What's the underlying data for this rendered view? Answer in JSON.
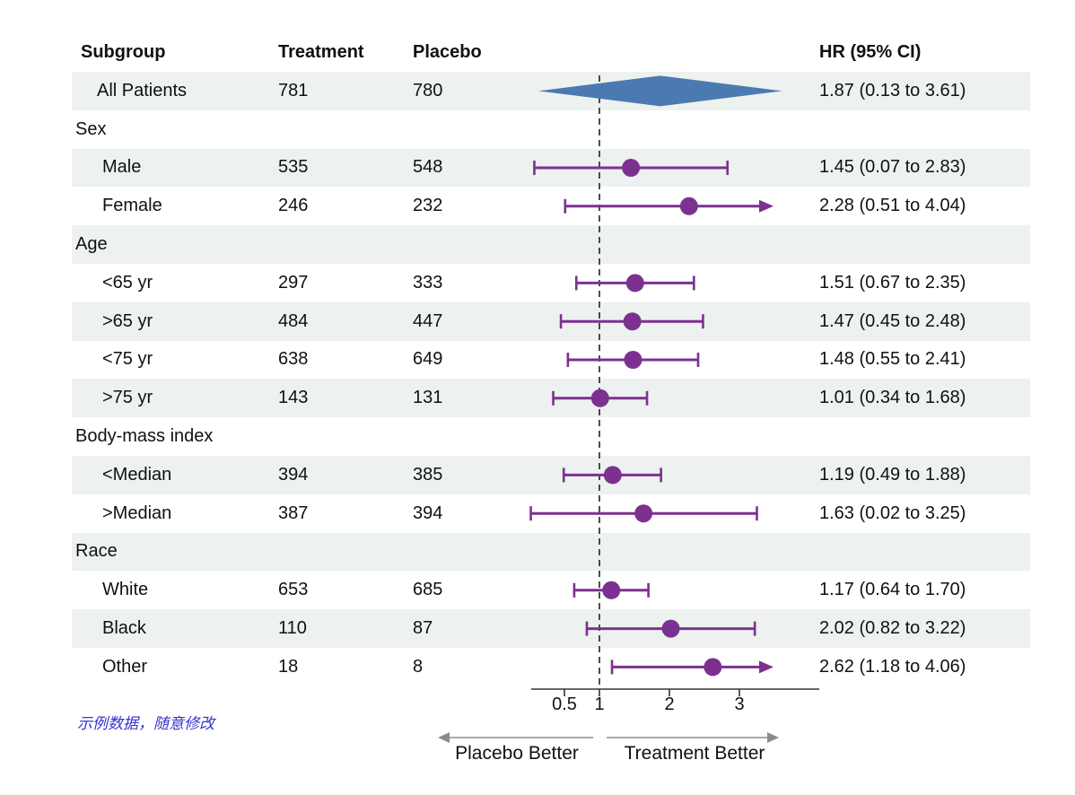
{
  "header": {
    "subgroup": "Subgroup",
    "treatment": "Treatment",
    "placebo": "Placebo",
    "hr": "HR (95% CI)"
  },
  "footnote": "示例数据，随意修改",
  "colors": {
    "stripe": "#edf1f0",
    "marker_purple": "#7c3190",
    "diamond_blue": "#4b79b2",
    "axis": "#333333",
    "direction_arrow": "#8c8c8c",
    "footnote_blue": "#3533cb",
    "text": "#111111",
    "ref_line": "#222222"
  },
  "chart_data": {
    "type": "forest",
    "title": "",
    "x_axis": {
      "scale": "linear",
      "ticks": [
        0.5,
        1,
        2,
        3
      ],
      "tick_labels": [
        "0.5",
        "1",
        "2",
        "3"
      ],
      "range": [
        0.03,
        4.14
      ],
      "ref_line": 1,
      "left_label": "Placebo Better",
      "right_label": "Treatment Better"
    },
    "columns": [
      "Subgroup",
      "Treatment",
      "Placebo",
      "HR (95% CI)"
    ],
    "rows": [
      {
        "kind": "summary",
        "label": "All Patients",
        "treatment": "781",
        "placebo": "780",
        "hr_text": "1.87 (0.13 to 3.61)",
        "est": 1.87,
        "lo": 0.13,
        "hi": 3.61,
        "shape": "diamond"
      },
      {
        "kind": "section",
        "label": "Sex"
      },
      {
        "kind": "item",
        "label": "Male",
        "treatment": "535",
        "placebo": "548",
        "hr_text": "1.45 (0.07 to 2.83)",
        "est": 1.45,
        "lo": 0.07,
        "hi": 2.83
      },
      {
        "kind": "item",
        "label": "Female",
        "treatment": "246",
        "placebo": "232",
        "hr_text": "2.28 (0.51 to 4.04)",
        "est": 2.28,
        "lo": 0.51,
        "hi": 4.04,
        "clip_hi": true
      },
      {
        "kind": "section",
        "label": "Age"
      },
      {
        "kind": "item",
        "label": "<65 yr",
        "treatment": "297",
        "placebo": "333",
        "hr_text": "1.51 (0.67 to 2.35)",
        "est": 1.51,
        "lo": 0.67,
        "hi": 2.35
      },
      {
        "kind": "item",
        "label": ">65 yr",
        "treatment": "484",
        "placebo": "447",
        "hr_text": "1.47 (0.45 to 2.48)",
        "est": 1.47,
        "lo": 0.45,
        "hi": 2.48
      },
      {
        "kind": "item",
        "label": "<75 yr",
        "treatment": "638",
        "placebo": "649",
        "hr_text": "1.48 (0.55 to 2.41)",
        "est": 1.48,
        "lo": 0.55,
        "hi": 2.41
      },
      {
        "kind": "item",
        "label": ">75 yr",
        "treatment": "143",
        "placebo": "131",
        "hr_text": "1.01 (0.34 to 1.68)",
        "est": 1.01,
        "lo": 0.34,
        "hi": 1.68
      },
      {
        "kind": "section",
        "label": "Body-mass index"
      },
      {
        "kind": "item",
        "label": "<Median",
        "treatment": "394",
        "placebo": "385",
        "hr_text": "1.19 (0.49 to 1.88)",
        "est": 1.19,
        "lo": 0.49,
        "hi": 1.88
      },
      {
        "kind": "item",
        "label": ">Median",
        "treatment": "387",
        "placebo": "394",
        "hr_text": "1.63 (0.02 to 3.25)",
        "est": 1.63,
        "lo": 0.02,
        "hi": 3.25
      },
      {
        "kind": "section",
        "label": "Race"
      },
      {
        "kind": "item",
        "label": "White",
        "treatment": "653",
        "placebo": "685",
        "hr_text": "1.17 (0.64 to 1.70)",
        "est": 1.17,
        "lo": 0.64,
        "hi": 1.7
      },
      {
        "kind": "item",
        "label": "Black",
        "treatment": "110",
        "placebo": "87",
        "hr_text": "2.02 (0.82 to 3.22)",
        "est": 2.02,
        "lo": 0.82,
        "hi": 3.22
      },
      {
        "kind": "item",
        "label": "Other",
        "treatment": "18",
        "placebo": "8",
        "hr_text": "2.62 (1.18 to 4.06)",
        "est": 2.62,
        "lo": 1.18,
        "hi": 4.06,
        "clip_hi": true
      }
    ]
  }
}
